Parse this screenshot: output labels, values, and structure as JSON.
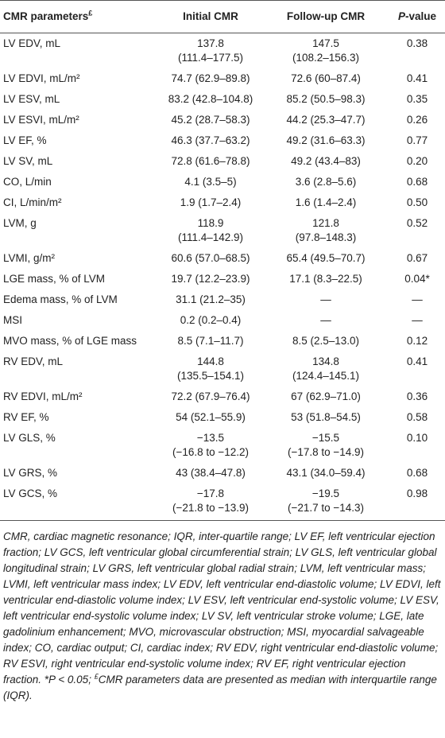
{
  "table": {
    "header": [
      {
        "text": "CMR parameters",
        "sup": "£"
      },
      {
        "text": "Initial CMR"
      },
      {
        "text": "Follow-up CMR"
      },
      {
        "em": "P",
        "text": "-value"
      }
    ],
    "rows": [
      [
        "LV EDV, mL",
        [
          "137.8",
          "(111.4–177.5)"
        ],
        [
          "147.5",
          "(108.2–156.3)"
        ],
        "0.38"
      ],
      [
        "LV EDVI, mL/m²",
        "74.7 (62.9–89.8)",
        "72.6 (60–87.4)",
        "0.41"
      ],
      [
        "LV ESV, mL",
        "83.2 (42.8–104.8)",
        "85.2 (50.5–98.3)",
        "0.35"
      ],
      [
        "LV ESVI, mL/m²",
        "45.2 (28.7–58.3)",
        "44.2 (25.3–47.7)",
        "0.26"
      ],
      [
        "LV EF, %",
        "46.3 (37.7–63.2)",
        "49.2 (31.6–63.3)",
        "0.77"
      ],
      [
        "LV SV, mL",
        "72.8 (61.6–78.8)",
        "49.2 (43.4–83)",
        "0.20"
      ],
      [
        "CO, L/min",
        "4.1 (3.5–5)",
        "3.6 (2.8–5.6)",
        "0.68"
      ],
      [
        "CI, L/min/m²",
        "1.9 (1.7–2.4)",
        "1.6 (1.4–2.4)",
        "0.50"
      ],
      [
        "LVM, g",
        [
          "118.9",
          "(111.4–142.9)"
        ],
        [
          "121.8",
          "(97.8–148.3)"
        ],
        "0.52"
      ],
      [
        "LVMI, g/m²",
        "60.6 (57.0–68.5)",
        "65.4 (49.5–70.7)",
        "0.67"
      ],
      [
        "LGE mass, % of LVM",
        "19.7 (12.2–23.9)",
        "17.1 (8.3–22.5)",
        "0.04*"
      ],
      [
        "Edema mass, % of LVM",
        "31.1 (21.2–35)",
        "—",
        "—"
      ],
      [
        "MSI",
        "0.2 (0.2–0.4)",
        "—",
        "—"
      ],
      [
        "MVO mass, % of LGE mass",
        "8.5 (7.1–11.7)",
        "8.5 (2.5–13.0)",
        "0.12"
      ],
      [
        "RV EDV, mL",
        [
          "144.8",
          "(135.5–154.1)"
        ],
        [
          "134.8",
          "(124.4–145.1)"
        ],
        "0.41"
      ],
      [
        "RV EDVI, mL/m²",
        "72.2 (67.9–76.4)",
        "67 (62.9–71.0)",
        "0.36"
      ],
      [
        "RV EF, %",
        "54 (52.1–55.9)",
        "53 (51.8–54.5)",
        "0.58"
      ],
      [
        "LV GLS, %",
        [
          "−13.5",
          "(−16.8 to −12.2)"
        ],
        [
          "−15.5",
          "(−17.8 to −14.9)"
        ],
        "0.10"
      ],
      [
        "LV GRS, %",
        "43 (38.4–47.8)",
        "43.1 (34.0–59.4)",
        "0.68"
      ],
      [
        "LV GCS, %",
        [
          "−17.8",
          "(−21.8 to −13.9)"
        ],
        [
          "−19.5",
          "(−21.7 to −14.3)"
        ],
        "0.98"
      ]
    ]
  },
  "footnote": {
    "text": "CMR, cardiac magnetic resonance; IQR, inter-quartile range; LV EF, left ventricular ejection fraction; LV GCS, left ventricular global circumferential strain; LV GLS, left ventricular global longitudinal strain; LV GRS, left ventricular global radial strain; LVM, left ventricular mass; LVMI, left ventricular mass index; LV EDV, left ventricular end-diastolic volume; LV EDVI, left ventricular end-diastolic volume index; LV ESV, left ventricular end-systolic volume; LV ESV, left ventricular end-systolic volume index; LV SV, left ventricular stroke volume; LGE, late gadolinium enhancement; MVO, microvascular obstruction; MSI, myocardial salvageable index; CO, cardiac output; CI, cardiac index; RV EDV, right ventricular end-diastolic volume; RV ESVI, right ventricular end-systolic volume index; RV EF, right ventricular ejection fraction. *P < 0.05; ",
    "sup": "£",
    "tail": "CMR parameters data are presented as median with interquartile range (IQR)."
  }
}
